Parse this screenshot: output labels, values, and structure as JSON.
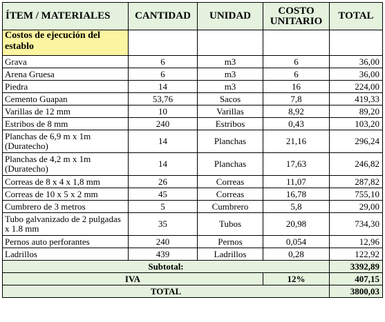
{
  "headers": {
    "item": "ÍTEM / MATERIALES",
    "cantidad": "CANTIDAD",
    "unidad": "UNIDAD",
    "costo": "COSTO UNITARIO",
    "total": "TOTAL"
  },
  "section_title": "Costos de ejecución del establo",
  "rows": [
    {
      "item": "Grava",
      "cantidad": "6",
      "unidad": "m3",
      "costo": "6",
      "total": "36,00"
    },
    {
      "item": "Arena Gruesa",
      "cantidad": "6",
      "unidad": "m3",
      "costo": "6",
      "total": "36,00"
    },
    {
      "item": "Piedra",
      "cantidad": "14",
      "unidad": "m3",
      "costo": "16",
      "total": "224,00"
    },
    {
      "item": "Cemento Guapan",
      "cantidad": "53,76",
      "unidad": "Sacos",
      "costo": "7,8",
      "total": "419,33"
    },
    {
      "item": "Varillas de 12 mm",
      "cantidad": "10",
      "unidad": "Varillas",
      "costo": "8,92",
      "total": "89,20"
    },
    {
      "item": "Estribos de 8 mm",
      "cantidad": "240",
      "unidad": "Estribos",
      "costo": "0,43",
      "total": "103,20"
    },
    {
      "item": "Planchas de 6,9 m x 1m (Duratecho)",
      "cantidad": "14",
      "unidad": "Planchas",
      "costo": "21,16",
      "total": "296,24"
    },
    {
      "item": "Planchas de 4,2 m x 1m (Duratecho)",
      "cantidad": "14",
      "unidad": "Planchas",
      "costo": "17,63",
      "total": "246,82"
    },
    {
      "item": "Correas de 8 x 4 x 1,8 mm",
      "cantidad": "26",
      "unidad": "Correas",
      "costo": "11,07",
      "total": "287,82"
    },
    {
      "item": "Correas de 10 x 5 x 2 mm",
      "cantidad": "45",
      "unidad": "Correas",
      "costo": "16,78",
      "total": "755,10"
    },
    {
      "item": "Cumbrero de 3 metros",
      "cantidad": "5",
      "unidad": "Cumbrero",
      "costo": "5,8",
      "total": "29,00"
    },
    {
      "item": "Tubo galvanizado de 2 pulgadas x 1.8 mm",
      "cantidad": "35",
      "unidad": "Tubos",
      "costo": "20,98",
      "total": "734,30"
    },
    {
      "item": "Pernos auto perforantes",
      "cantidad": "240",
      "unidad": "Pernos",
      "costo": "0,054",
      "total": "12,96"
    },
    {
      "item": "Ladrillos",
      "cantidad": "439",
      "unidad": "Ladrillos",
      "costo": "0,28",
      "total": "122,92"
    }
  ],
  "footer": {
    "subtotal_label": "Subtotal:",
    "subtotal_value": "3392,89",
    "iva_label": "IVA",
    "iva_pct": "12%",
    "iva_value": "407,15",
    "total_label": "TOTAL",
    "total_value": "3800,03"
  },
  "colors": {
    "header_bg": "#e4f2de",
    "section_bg": "#fbf4a0"
  }
}
